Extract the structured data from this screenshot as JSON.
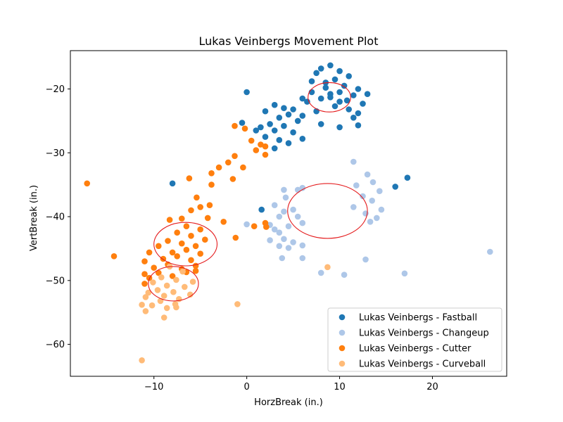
{
  "chart_data": {
    "type": "scatter",
    "title": "Lukas Veinbergs Movement Plot",
    "xlabel": "HorzBreak (in.)",
    "ylabel": "VertBreak (in.)",
    "xlim": [
      -19,
      28
    ],
    "ylim": [
      -65,
      -14
    ],
    "y_inverted": true,
    "xticks": [
      -10,
      0,
      10,
      20
    ],
    "yticks": [
      -20,
      -30,
      -40,
      -50,
      -60
    ],
    "grid": false,
    "legend_position": "lower-right",
    "series": [
      {
        "name": "Lukas Veinbergs - Fastball",
        "color": "#1f77b4",
        "points": [
          [
            9,
            -16.3
          ],
          [
            8,
            -16.8
          ],
          [
            10,
            -17.2
          ],
          [
            7.5,
            -17.5
          ],
          [
            11,
            -18
          ],
          [
            9.5,
            -18.5
          ],
          [
            8.5,
            -19
          ],
          [
            10.5,
            -19.5
          ],
          [
            12,
            -20
          ],
          [
            7,
            -20.5
          ],
          [
            9,
            -20.8
          ],
          [
            11.5,
            -21
          ],
          [
            8,
            -21.5
          ],
          [
            10,
            -22
          ],
          [
            12.5,
            -22.3
          ],
          [
            6.5,
            -22
          ],
          [
            9.5,
            -22.7
          ],
          [
            11,
            -23.2
          ],
          [
            7.5,
            -23.5
          ],
          [
            12,
            -23.8
          ],
          [
            8.5,
            -19.8
          ],
          [
            10,
            -20.5
          ],
          [
            9,
            -21.3
          ],
          [
            10.8,
            -21.8
          ],
          [
            13,
            -20.8
          ],
          [
            7,
            -18.8
          ],
          [
            6,
            -21.5
          ],
          [
            11.5,
            -24.5
          ],
          [
            8,
            -25.5
          ],
          [
            10,
            -26
          ],
          [
            12,
            -25.7
          ],
          [
            0,
            -20.5
          ],
          [
            3,
            -22.5
          ],
          [
            4,
            -23
          ],
          [
            5,
            -23.2
          ],
          [
            2,
            -23.5
          ],
          [
            4.5,
            -24
          ],
          [
            3.5,
            -24.5
          ],
          [
            6,
            -24.2
          ],
          [
            5.5,
            -25
          ],
          [
            2.5,
            -25.5
          ],
          [
            4,
            -25.8
          ],
          [
            1.5,
            -26
          ],
          [
            3,
            -26.5
          ],
          [
            5,
            -26.8
          ],
          [
            2,
            -27.5
          ],
          [
            3.5,
            -28
          ],
          [
            4.5,
            -28.5
          ],
          [
            6,
            -27.8
          ],
          [
            3,
            -29.3
          ],
          [
            -0.5,
            -25.3
          ],
          [
            1,
            -26.5
          ],
          [
            16,
            -35.3
          ],
          [
            17.3,
            -33.9
          ],
          [
            -8,
            -34.8
          ],
          [
            1.6,
            -38.9
          ]
        ]
      },
      {
        "name": "Lukas Veinbergs - Changeup",
        "color": "#aec7e8",
        "points": [
          [
            11.5,
            -31.4
          ],
          [
            13,
            -33.4
          ],
          [
            13.6,
            -34.6
          ],
          [
            11.8,
            -35.1
          ],
          [
            14.3,
            -36
          ],
          [
            12.5,
            -36.8
          ],
          [
            13.5,
            -37.5
          ],
          [
            14.5,
            -38.9
          ],
          [
            12.8,
            -39.5
          ],
          [
            11.5,
            -38.5
          ],
          [
            13.3,
            -40.8
          ],
          [
            14,
            -40.2
          ],
          [
            4,
            -35.8
          ],
          [
            5.5,
            -35.8
          ],
          [
            6,
            -35.5
          ],
          [
            4.2,
            -37
          ],
          [
            3,
            -38.2
          ],
          [
            5,
            -38.9
          ],
          [
            4,
            -39.2
          ],
          [
            3.5,
            -40
          ],
          [
            5.5,
            -40
          ],
          [
            6,
            -41
          ],
          [
            4.5,
            -41.5
          ],
          [
            3,
            -42
          ],
          [
            2.5,
            -41.3
          ],
          [
            3.5,
            -42.5
          ],
          [
            4,
            -43.5
          ],
          [
            5,
            -44
          ],
          [
            2.5,
            -43.7
          ],
          [
            3.5,
            -44.6
          ],
          [
            4.5,
            -44.9
          ],
          [
            6,
            -44.5
          ],
          [
            0,
            -41.2
          ],
          [
            3.8,
            -46.5
          ],
          [
            6,
            -46.5
          ],
          [
            12.8,
            -46.7
          ],
          [
            8,
            -48.8
          ],
          [
            10.5,
            -49.1
          ],
          [
            17,
            -48.9
          ],
          [
            26.2,
            -45.5
          ]
        ]
      },
      {
        "name": "Lukas Veinbergs - Cutter",
        "color": "#ff7f0e",
        "points": [
          [
            -17.2,
            -34.8
          ],
          [
            -14.3,
            -46.2
          ],
          [
            -1.3,
            -25.8
          ],
          [
            -0.2,
            -26.2
          ],
          [
            0.5,
            -28.1
          ],
          [
            1.5,
            -28.7
          ],
          [
            2,
            -29
          ],
          [
            1,
            -29.6
          ],
          [
            2,
            -30.3
          ],
          [
            -1.3,
            -30.5
          ],
          [
            -2,
            -31.5
          ],
          [
            -3,
            -32.3
          ],
          [
            -3.8,
            -33.2
          ],
          [
            -3.8,
            -35
          ],
          [
            -6.2,
            -34
          ],
          [
            -1.5,
            -34.1
          ],
          [
            -0.4,
            -32.3
          ],
          [
            -5.4,
            -37
          ],
          [
            -4,
            -38.2
          ],
          [
            -5,
            -38.5
          ],
          [
            -6,
            -39
          ],
          [
            -4.2,
            -40.2
          ],
          [
            -2.5,
            -40.8
          ],
          [
            -7,
            -40.3
          ],
          [
            -8.3,
            -40.5
          ],
          [
            -6.5,
            -41.5
          ],
          [
            -5,
            -42
          ],
          [
            -7.5,
            -42.5
          ],
          [
            -6,
            -43
          ],
          [
            -4.5,
            -43.6
          ],
          [
            -8.5,
            -43.8
          ],
          [
            -7,
            -44.2
          ],
          [
            -5.5,
            -44.6
          ],
          [
            -9.5,
            -44.6
          ],
          [
            -6.5,
            -45.2
          ],
          [
            -8,
            -45.6
          ],
          [
            -5,
            -45.8
          ],
          [
            -10.5,
            -45.6
          ],
          [
            -7.5,
            -46.2
          ],
          [
            -9,
            -46.6
          ],
          [
            -6,
            -46.8
          ],
          [
            -11,
            -47
          ],
          [
            -8.5,
            -47.5
          ],
          [
            -5.5,
            -47.7
          ],
          [
            -10,
            -48
          ],
          [
            -7,
            -48.2
          ],
          [
            -9.5,
            -48.8
          ],
          [
            -11,
            -49
          ],
          [
            -6.5,
            -48.7
          ],
          [
            -8,
            -49.3
          ],
          [
            -10.5,
            -49.6
          ],
          [
            -5.5,
            -48.5
          ],
          [
            -11,
            -50.5
          ],
          [
            -1.2,
            -43.3
          ],
          [
            0.8,
            -41.5
          ],
          [
            2,
            -41
          ],
          [
            2.1,
            -41.6
          ]
        ]
      },
      {
        "name": "Lukas Veinbergs - Curveball",
        "color": "#ffbb78",
        "points": [
          [
            -8.3,
            -47.8
          ],
          [
            -6.9,
            -48.6
          ],
          [
            -9.2,
            -49.5
          ],
          [
            -7.6,
            -49.9
          ],
          [
            -5.8,
            -50.2
          ],
          [
            -10.1,
            -50.3
          ],
          [
            -8.6,
            -50.8
          ],
          [
            -6.7,
            -51
          ],
          [
            -9.6,
            -51.5
          ],
          [
            -7.9,
            -51.8
          ],
          [
            -10.6,
            -51.9
          ],
          [
            -6.1,
            -52.2
          ],
          [
            -8.9,
            -52.4
          ],
          [
            -7.3,
            -52.9
          ],
          [
            -10.9,
            -52.6
          ],
          [
            -9.3,
            -53.2
          ],
          [
            -7.7,
            -53.7
          ],
          [
            -10.2,
            -53.9
          ],
          [
            -8.6,
            -54.3
          ],
          [
            -11.3,
            -53.8
          ],
          [
            -10.9,
            -54.8
          ],
          [
            -7.6,
            -54.2
          ],
          [
            -8.9,
            -55.8
          ],
          [
            -1,
            -53.7
          ],
          [
            8.7,
            -47.9
          ],
          [
            -11.3,
            -62.5
          ]
        ]
      }
    ],
    "ellipses": [
      {
        "series": "Lukas Veinbergs - Fastball",
        "cx": 8.9,
        "cy": -21.3,
        "rx": 2.3,
        "ry": 2.3,
        "color": "#e41a1c"
      },
      {
        "series": "Lukas Veinbergs - Changeup",
        "cx": 8.7,
        "cy": -39.1,
        "rx": 4.3,
        "ry": 4.3,
        "color": "#e41a1c"
      },
      {
        "series": "Lukas Veinbergs - Cutter",
        "cx": -6.6,
        "cy": -44.3,
        "rx": 3.4,
        "ry": 3.4,
        "color": "#e41a1c"
      },
      {
        "series": "Lukas Veinbergs - Curveball",
        "cx": -7.9,
        "cy": -50.5,
        "rx": 2.7,
        "ry": 2.7,
        "color": "#e41a1c"
      }
    ]
  }
}
